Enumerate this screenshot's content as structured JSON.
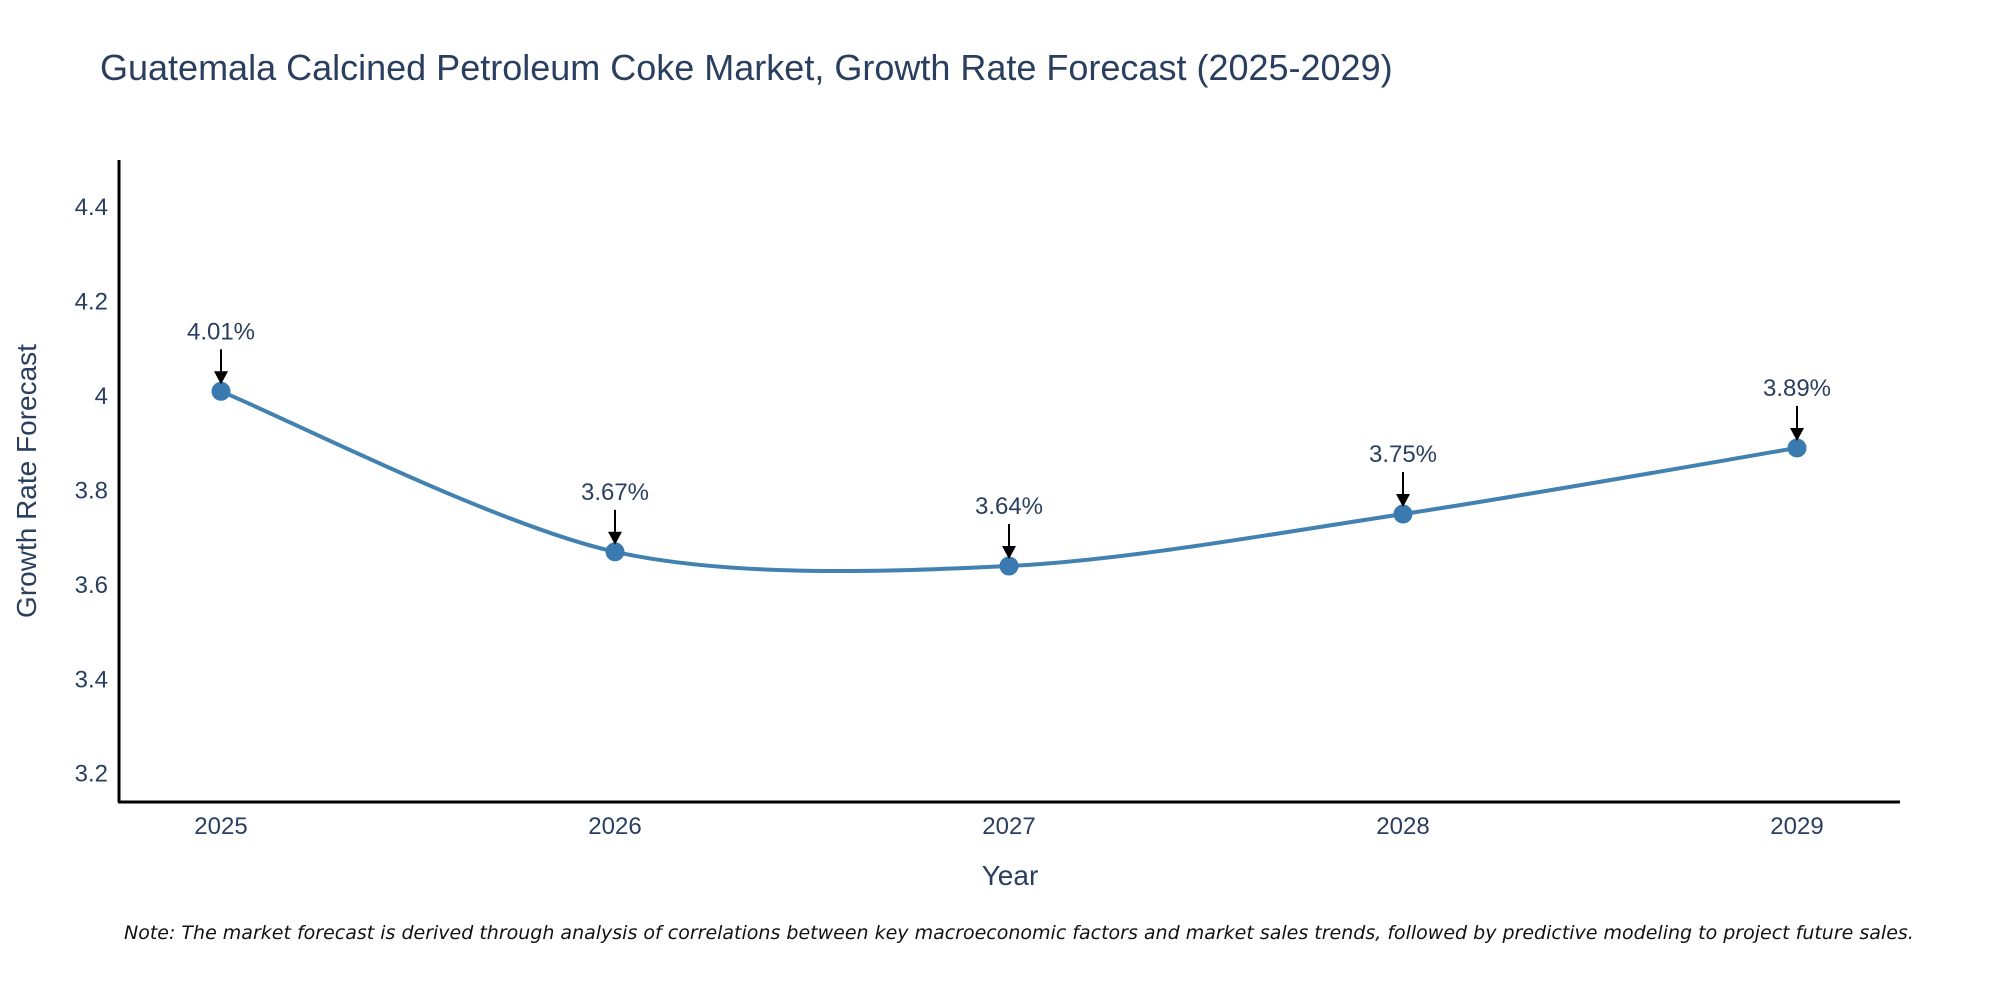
{
  "chart_data": {
    "type": "line",
    "title": "Guatemala Calcined Petroleum Coke Market, Growth Rate Forecast (2025-2029)",
    "xlabel": "Year",
    "ylabel": "Growth Rate Forecast",
    "categories": [
      "2025",
      "2026",
      "2027",
      "2028",
      "2029"
    ],
    "series": [
      {
        "name": "Growth Rate Forecast",
        "values": [
          4.01,
          3.67,
          3.64,
          3.75,
          3.89
        ]
      }
    ],
    "data_labels": [
      "4.01%",
      "3.67%",
      "3.64%",
      "3.75%",
      "3.89%"
    ],
    "ylim": [
      3.14,
      4.5
    ],
    "yticks": [
      3.2,
      3.4,
      3.6,
      3.8,
      4.0,
      4.2,
      4.4
    ],
    "ytick_labels": [
      "3.2",
      "3.4",
      "3.6",
      "3.8",
      "4",
      "4.2",
      "4.4"
    ],
    "grid": false,
    "line_color": "#4281b0",
    "marker_color": "#3a7ab0",
    "note": "Note: The market forecast is derived through analysis of correlations between key macroeconomic factors and market sales trends, followed by predictive modeling to project future sales."
  }
}
